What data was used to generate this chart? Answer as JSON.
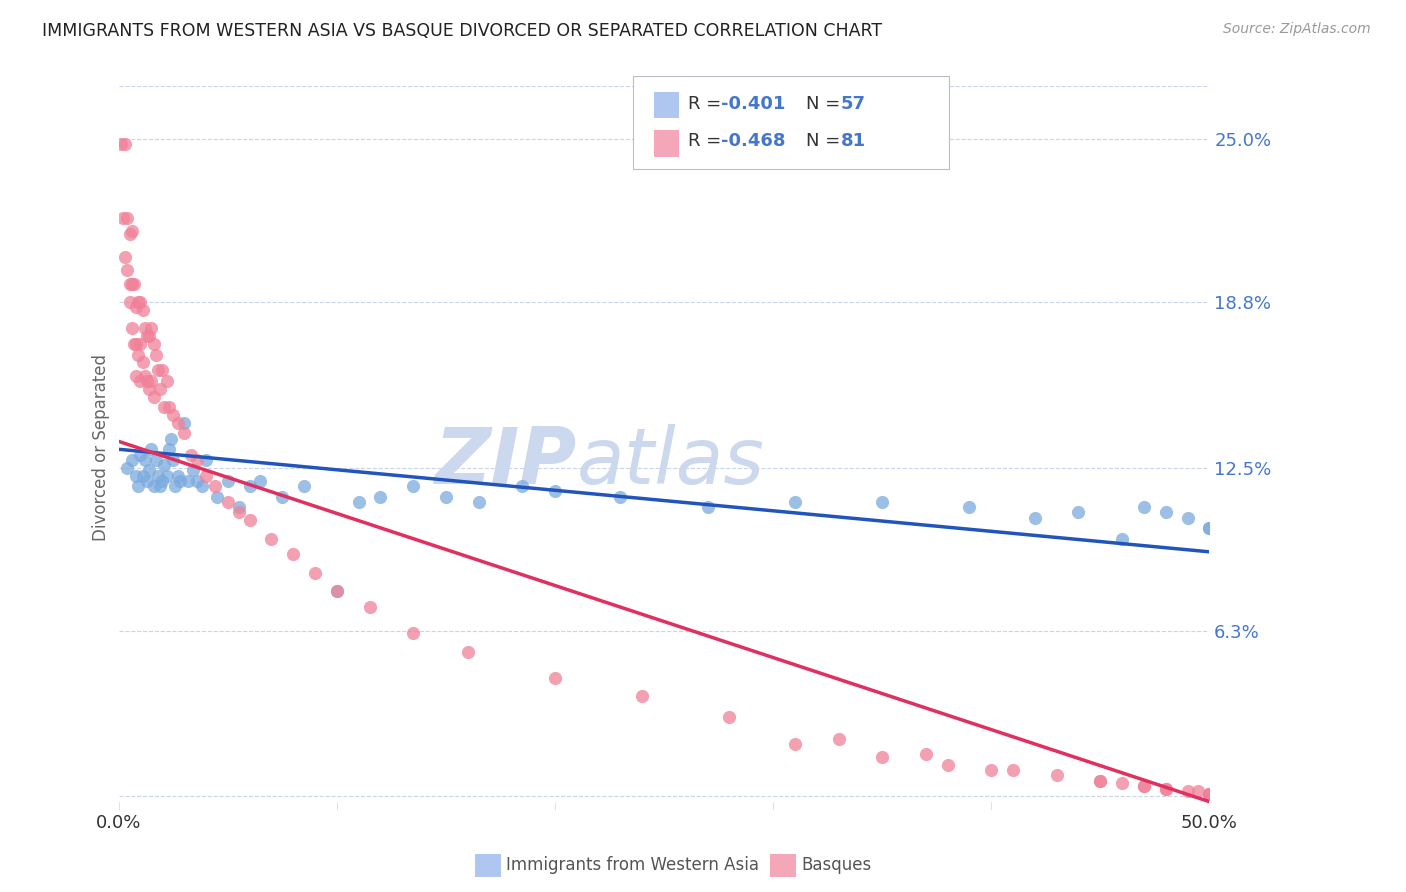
{
  "title": "IMMIGRANTS FROM WESTERN ASIA VS BASQUE DIVORCED OR SEPARATED CORRELATION CHART",
  "source": "Source: ZipAtlas.com",
  "ylabel": "Divorced or Separated",
  "yticks": [
    "6.3%",
    "12.5%",
    "18.8%",
    "25.0%"
  ],
  "ytick_vals": [
    0.063,
    0.125,
    0.188,
    0.25
  ],
  "xlim": [
    0.0,
    0.5
  ],
  "ylim": [
    -0.005,
    0.27
  ],
  "legend1_label_r": "R = -0.401",
  "legend1_label_n": "N = 57",
  "legend2_label_r": "R = -0.468",
  "legend2_label_n": "N = 81",
  "legend1_color": "#aec6f0",
  "legend2_color": "#f4a7b9",
  "scatter1_color": "#7baade",
  "scatter2_color": "#f08098",
  "trend1_color": "#2255bb",
  "trend2_color": "#e03060",
  "watermark_zip": "ZIP",
  "watermark_atlas": "atlas",
  "watermark_color": "#ccd8ee",
  "background_color": "#ffffff",
  "grid_color": "#c8d4e8",
  "bottom_legend1": "Immigrants from Western Asia",
  "bottom_legend2": "Basques",
  "scatter1_x": [
    0.004,
    0.006,
    0.008,
    0.009,
    0.01,
    0.011,
    0.012,
    0.013,
    0.014,
    0.015,
    0.016,
    0.017,
    0.018,
    0.019,
    0.02,
    0.021,
    0.022,
    0.023,
    0.024,
    0.025,
    0.026,
    0.027,
    0.028,
    0.03,
    0.032,
    0.034,
    0.036,
    0.038,
    0.04,
    0.045,
    0.05,
    0.055,
    0.06,
    0.065,
    0.075,
    0.085,
    0.1,
    0.11,
    0.12,
    0.135,
    0.15,
    0.165,
    0.185,
    0.2,
    0.23,
    0.27,
    0.31,
    0.35,
    0.39,
    0.42,
    0.44,
    0.46,
    0.47,
    0.48,
    0.49,
    0.5,
    0.5
  ],
  "scatter1_y": [
    0.125,
    0.128,
    0.122,
    0.118,
    0.13,
    0.122,
    0.128,
    0.12,
    0.124,
    0.132,
    0.118,
    0.128,
    0.122,
    0.118,
    0.12,
    0.126,
    0.122,
    0.132,
    0.136,
    0.128,
    0.118,
    0.122,
    0.12,
    0.142,
    0.12,
    0.124,
    0.12,
    0.118,
    0.128,
    0.114,
    0.12,
    0.11,
    0.118,
    0.12,
    0.114,
    0.118,
    0.078,
    0.112,
    0.114,
    0.118,
    0.114,
    0.112,
    0.118,
    0.116,
    0.114,
    0.11,
    0.112,
    0.112,
    0.11,
    0.106,
    0.108,
    0.098,
    0.11,
    0.108,
    0.106,
    0.102,
    0.102
  ],
  "scatter2_x": [
    0.001,
    0.002,
    0.003,
    0.003,
    0.004,
    0.004,
    0.005,
    0.005,
    0.005,
    0.006,
    0.006,
    0.006,
    0.007,
    0.007,
    0.008,
    0.008,
    0.008,
    0.009,
    0.009,
    0.01,
    0.01,
    0.01,
    0.011,
    0.011,
    0.012,
    0.012,
    0.013,
    0.013,
    0.014,
    0.014,
    0.015,
    0.015,
    0.016,
    0.016,
    0.017,
    0.018,
    0.019,
    0.02,
    0.021,
    0.022,
    0.023,
    0.025,
    0.027,
    0.03,
    0.033,
    0.036,
    0.04,
    0.044,
    0.05,
    0.055,
    0.06,
    0.07,
    0.08,
    0.09,
    0.1,
    0.115,
    0.135,
    0.16,
    0.2,
    0.24,
    0.28,
    0.33,
    0.37,
    0.41,
    0.45,
    0.47,
    0.48,
    0.495,
    0.5,
    0.5,
    0.5,
    0.49,
    0.48,
    0.47,
    0.46,
    0.45,
    0.43,
    0.4,
    0.38,
    0.35,
    0.31
  ],
  "scatter2_y": [
    0.248,
    0.22,
    0.248,
    0.205,
    0.2,
    0.22,
    0.214,
    0.195,
    0.188,
    0.215,
    0.195,
    0.178,
    0.195,
    0.172,
    0.186,
    0.172,
    0.16,
    0.188,
    0.168,
    0.188,
    0.172,
    0.158,
    0.185,
    0.165,
    0.178,
    0.16,
    0.175,
    0.158,
    0.175,
    0.155,
    0.178,
    0.158,
    0.172,
    0.152,
    0.168,
    0.162,
    0.155,
    0.162,
    0.148,
    0.158,
    0.148,
    0.145,
    0.142,
    0.138,
    0.13,
    0.128,
    0.122,
    0.118,
    0.112,
    0.108,
    0.105,
    0.098,
    0.092,
    0.085,
    0.078,
    0.072,
    0.062,
    0.055,
    0.045,
    0.038,
    0.03,
    0.022,
    0.016,
    0.01,
    0.006,
    0.004,
    0.003,
    0.002,
    0.001,
    0.001,
    0.001,
    0.002,
    0.003,
    0.004,
    0.005,
    0.006,
    0.008,
    0.01,
    0.012,
    0.015,
    0.02
  ],
  "trend1_x0": 0.0,
  "trend1_y0": 0.132,
  "trend1_x1": 0.5,
  "trend1_y1": 0.093,
  "trend2_x0": 0.0,
  "trend2_y0": 0.135,
  "trend2_x1": 0.5,
  "trend2_y1": -0.002
}
